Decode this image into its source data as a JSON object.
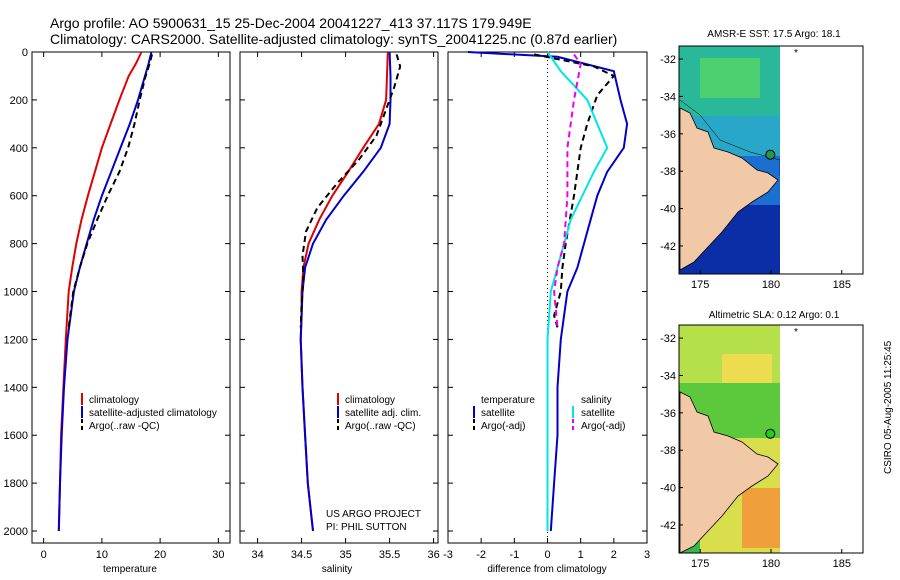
{
  "header": {
    "title_line1": "Argo profile: AO 5900631_15 25-Dec-2004 20041227_413 37.117S 179.949E",
    "title_line2": "Climatology: CARS2000. Satellite-adjusted climatology: synTS_20041225.nc (0.87d earlier)"
  },
  "side_caption": "CSIRO 05-Aug-2005 11:25:45",
  "project_note": {
    "line1": "US ARGO PROJECT",
    "line2": "PI: PHIL SUTTON"
  },
  "colors": {
    "climatology": "#e00000",
    "satellite": "#0000cc",
    "argo": "#000000",
    "salinity_sat": "#00e5e5",
    "salinity_argo": "#ee00ee"
  },
  "chart_data": [
    {
      "type": "line",
      "id": "temperature",
      "xlabel": "temperature",
      "xlim": [
        -2,
        32
      ],
      "ylim": [
        0,
        2050
      ],
      "y_inverted": true,
      "xticks": [
        0,
        10,
        20,
        30
      ],
      "yticks": [
        0,
        200,
        400,
        600,
        800,
        1000,
        1200,
        1400,
        1600,
        1800,
        2000
      ],
      "legend": [
        "climatology",
        "satellite-adjusted climatology",
        "Argo(..raw -QC)"
      ],
      "series": [
        {
          "name": "climatology",
          "color": "#e00000",
          "dash": "",
          "x": [
            16.8,
            15.8,
            14.6,
            13.0,
            11.5,
            10.0,
            8.8,
            7.6,
            6.5,
            5.6,
            4.9,
            4.3,
            3.8,
            3.4,
            3.0,
            2.8,
            2.6
          ],
          "y": [
            0,
            50,
            100,
            200,
            300,
            400,
            500,
            600,
            700,
            800,
            900,
            1000,
            1200,
            1400,
            1600,
            1800,
            2000
          ]
        },
        {
          "name": "satellite",
          "color": "#0000cc",
          "dash": "",
          "x": [
            18.5,
            18.0,
            17.4,
            16.2,
            14.8,
            13.2,
            11.6,
            10.0,
            8.6,
            7.4,
            6.2,
            5.2,
            4.1,
            3.5,
            3.1,
            2.8,
            2.6
          ],
          "y": [
            0,
            50,
            100,
            200,
            300,
            400,
            500,
            600,
            700,
            800,
            900,
            1000,
            1200,
            1400,
            1600,
            1800,
            2000
          ]
        },
        {
          "name": "Argo",
          "color": "#000000",
          "dash": "6,4",
          "x": [
            18.6,
            18.2,
            17.5,
            16.5,
            15.6,
            14.5,
            13.0,
            11.0,
            9.2,
            7.5,
            6.2,
            5.1,
            4.3
          ],
          "y": [
            10,
            50,
            100,
            200,
            300,
            400,
            500,
            600,
            700,
            800,
            900,
            1000,
            1150
          ]
        }
      ]
    },
    {
      "type": "line",
      "id": "salinity",
      "xlabel": "salinity",
      "xlim": [
        33.8,
        36.05
      ],
      "ylim": [
        0,
        2050
      ],
      "y_inverted": true,
      "xticks": [
        34,
        34.5,
        35,
        35.5,
        36
      ],
      "legend": [
        "climatology",
        "satellite adj. clim.",
        "Argo(..raw -QC)"
      ],
      "series": [
        {
          "name": "climatology",
          "color": "#e00000",
          "dash": "",
          "x": [
            35.48,
            35.47,
            35.46,
            35.38,
            35.2,
            35.03,
            34.85,
            34.7,
            34.58,
            34.52,
            34.5,
            34.5,
            34.49,
            34.51,
            34.54,
            34.57,
            34.6,
            34.63
          ],
          "y": [
            0,
            100,
            200,
            300,
            400,
            500,
            600,
            700,
            800,
            900,
            1000,
            1100,
            1200,
            1400,
            1600,
            1800,
            1900,
            2000
          ]
        },
        {
          "name": "satellite",
          "color": "#0000cc",
          "dash": "",
          "x": [
            35.5,
            35.51,
            35.51,
            35.5,
            35.4,
            35.2,
            34.98,
            34.78,
            34.63,
            34.54,
            34.51,
            34.5,
            34.49,
            34.51,
            34.54,
            34.57,
            34.6,
            34.63
          ],
          "y": [
            0,
            100,
            200,
            300,
            400,
            500,
            600,
            700,
            800,
            900,
            1000,
            1100,
            1200,
            1400,
            1600,
            1800,
            1900,
            2000
          ]
        },
        {
          "name": "Argo",
          "color": "#000000",
          "dash": "6,4",
          "x": [
            35.58,
            35.62,
            35.55,
            35.45,
            35.35,
            35.15,
            34.9,
            34.68,
            34.55,
            34.51,
            34.52,
            34.5,
            34.49
          ],
          "y": [
            10,
            60,
            150,
            250,
            350,
            450,
            550,
            650,
            750,
            850,
            950,
            1050,
            1150
          ]
        }
      ]
    },
    {
      "type": "line",
      "id": "difference",
      "xlabel": "difference from climatology",
      "xlim": [
        -3,
        3
      ],
      "ylim": [
        0,
        2050
      ],
      "y_inverted": true,
      "xticks": [
        -3,
        -2,
        -1,
        0,
        1,
        2,
        3
      ],
      "legend_left": [
        "temperature",
        "satellite",
        "Argo(-adj)"
      ],
      "legend_right": [
        "salinity",
        "satellite",
        "Argo(-adj)"
      ],
      "series": [
        {
          "name": "temperature satellite",
          "color": "#0000cc",
          "dash": "",
          "x": [
            -2.4,
            0.3,
            2.0,
            2.2,
            2.4,
            2.3,
            1.8,
            1.5,
            1.3,
            1.1,
            0.9,
            0.6,
            0.4,
            0.3,
            0.3,
            0.2,
            0.1
          ],
          "y": [
            0,
            20,
            80,
            200,
            300,
            400,
            500,
            600,
            700,
            800,
            900,
            1000,
            1200,
            1400,
            1600,
            1800,
            2000
          ]
        },
        {
          "name": "temperature Argo",
          "color": "#000000",
          "dash": "6,4",
          "x": [
            -0.4,
            1.4,
            2.0,
            1.5,
            1.2,
            1.0,
            0.8,
            0.55,
            0.45,
            0.4,
            0.2,
            0.3
          ],
          "y": [
            10,
            60,
            100,
            180,
            300,
            400,
            600,
            800,
            900,
            1000,
            1100,
            1150
          ]
        },
        {
          "name": "salinity satellite",
          "color": "#00e5e5",
          "dash": "",
          "x": [
            0.0,
            0.4,
            1.2,
            1.8,
            1.4,
            0.7,
            0.3,
            0.1,
            0.0,
            0.0,
            0.0,
            0.0
          ],
          "y": [
            0,
            80,
            200,
            400,
            500,
            700,
            900,
            1000,
            1200,
            1400,
            1700,
            2000
          ]
        },
        {
          "name": "salinity Argo",
          "color": "#ee00ee",
          "dash": "6,4",
          "x": [
            0.8,
            1.0,
            0.8,
            0.6,
            0.6,
            0.5,
            0.3,
            0.2,
            0.3
          ],
          "y": [
            10,
            50,
            200,
            400,
            600,
            800,
            900,
            1000,
            1150
          ]
        }
      ]
    }
  ],
  "maps": [
    {
      "id": "sst-map",
      "title": "AMSR-E SST: 17.5 Argo: 18.1",
      "xticks": [
        175,
        180,
        185
      ],
      "yticks": [
        -32,
        -34,
        -36,
        -38,
        -40,
        -42
      ],
      "xlim": [
        173.5,
        186.5
      ],
      "ylim": [
        -43.5,
        -31.3
      ],
      "float_lon": 179.949,
      "float_lat": -37.117,
      "marker": "*"
    },
    {
      "id": "sla-map",
      "title": "Altimetric SLA: 0.12 Argo: 0.1",
      "xticks": [
        175,
        180,
        185
      ],
      "yticks": [
        -32,
        -34,
        -36,
        -38,
        -40,
        -42
      ],
      "xlim": [
        173.5,
        186.5
      ],
      "ylim": [
        -43.5,
        -31.3
      ],
      "float_lon": 179.949,
      "float_lat": -37.117,
      "marker": "*"
    }
  ]
}
